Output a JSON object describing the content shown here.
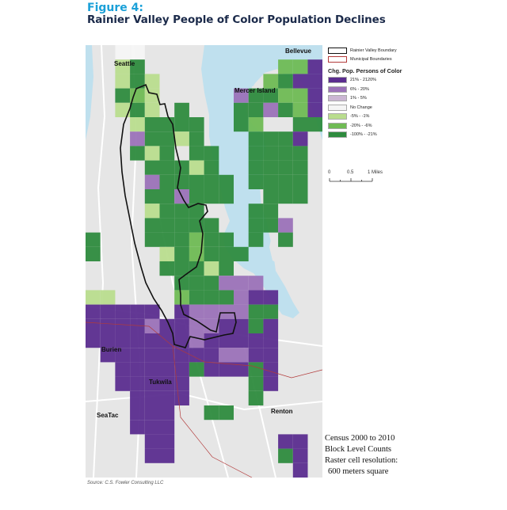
{
  "figure": {
    "label": "Figure 4:",
    "title": "Rainier Valley People of Color Population Declines"
  },
  "map": {
    "places": {
      "seattle": "Seattle",
      "bellevue": "Bellevue",
      "mercer_island": "Mercer Island",
      "burien": "Burien",
      "tukwila": "Tukwila",
      "seatac": "SeaTac",
      "renton": "Renton"
    },
    "water_color": "#bfe0ee",
    "land_color": "#e6e6e6",
    "road_color": "#ffffff"
  },
  "legend": {
    "boundary_label": "Rainier Valley Boundary",
    "municipal_label": "Municipal Boundaries",
    "heading": "Chg. Pop. Persons of Color",
    "classes": [
      {
        "label": "21% - 2120%",
        "color": "#5b2d8f"
      },
      {
        "label": "6% - 20%",
        "color": "#9b72b8"
      },
      {
        "label": "1% - 5%",
        "color": "#cbb6d3"
      },
      {
        "label": "No Change",
        "color": "#f5f5f5"
      },
      {
        "label": "-5% - -1%",
        "color": "#b9dd8e"
      },
      {
        "label": "-20% - -6%",
        "color": "#6fbb54"
      },
      {
        "label": "-100% - -21%",
        "color": "#2e8b3e"
      }
    ]
  },
  "scale": {
    "label_0": "0",
    "label_mid": "0.5",
    "label_end": "1 Miles"
  },
  "notes": {
    "line1": "Census 2000 to 2010",
    "line2": "Block Level Counts",
    "line3": "Raster cell resolution:",
    "line4": "600 meters square"
  },
  "source": "Source: C.S. Fowler Consulting LLC"
}
